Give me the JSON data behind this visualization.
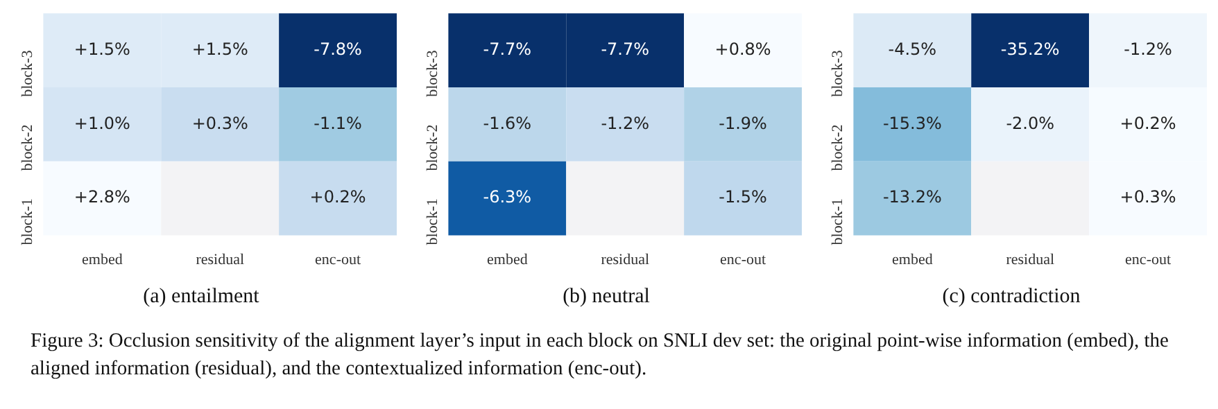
{
  "chart_data": [
    {
      "type": "heatmap",
      "title": "(a) entailment",
      "categories": [
        "embed",
        "residual",
        "enc-out"
      ],
      "y_categories": [
        "block-3",
        "block-2",
        "block-1"
      ],
      "cells": [
        [
          1.5,
          1.5,
          -7.8
        ],
        [
          1.0,
          0.3,
          -1.1
        ],
        [
          2.8,
          null,
          0.2
        ]
      ],
      "cell_labels": [
        [
          "+1.5%",
          "+1.5%",
          "-7.8%"
        ],
        [
          "+1.0%",
          "+0.3%",
          "-1.1%"
        ],
        [
          "+2.8%",
          null,
          "+0.2%"
        ]
      ],
      "annotations": [
        "Figure 3: Occlusion sensitivity of the alignment layer’s input in each block on SNLI dev set: the original point-wise information (embed), the aligned information (residual), and the contextualized information (enc-out)."
      ]
    },
    {
      "type": "heatmap",
      "title": "(b) neutral",
      "categories": [
        "embed",
        "residual",
        "enc-out"
      ],
      "y_categories": [
        "block-3",
        "block-2",
        "block-1"
      ],
      "cells": [
        [
          -7.7,
          -7.7,
          0.8
        ],
        [
          -1.6,
          -1.2,
          -1.9
        ],
        [
          -6.3,
          null,
          -1.5
        ]
      ],
      "cell_labels": [
        [
          "-7.7%",
          "-7.7%",
          "+0.8%"
        ],
        [
          "-1.6%",
          "-1.2%",
          "-1.9%"
        ],
        [
          "-6.3%",
          null,
          "-1.5%"
        ]
      ]
    },
    {
      "type": "heatmap",
      "title": "(c) contradiction",
      "categories": [
        "embed",
        "residual",
        "enc-out"
      ],
      "y_categories": [
        "block-3",
        "block-2",
        "block-1"
      ],
      "cells": [
        [
          -4.5,
          -35.2,
          -1.2
        ],
        [
          -15.3,
          -2.0,
          0.2
        ],
        [
          -13.2,
          null,
          0.3
        ]
      ],
      "cell_labels": [
        [
          "-4.5%",
          "-35.2%",
          "-1.2%"
        ],
        [
          "-15.3%",
          "-2.0%",
          "+0.2%"
        ],
        [
          "-13.2%",
          null,
          "+0.3%"
        ]
      ]
    }
  ]
}
